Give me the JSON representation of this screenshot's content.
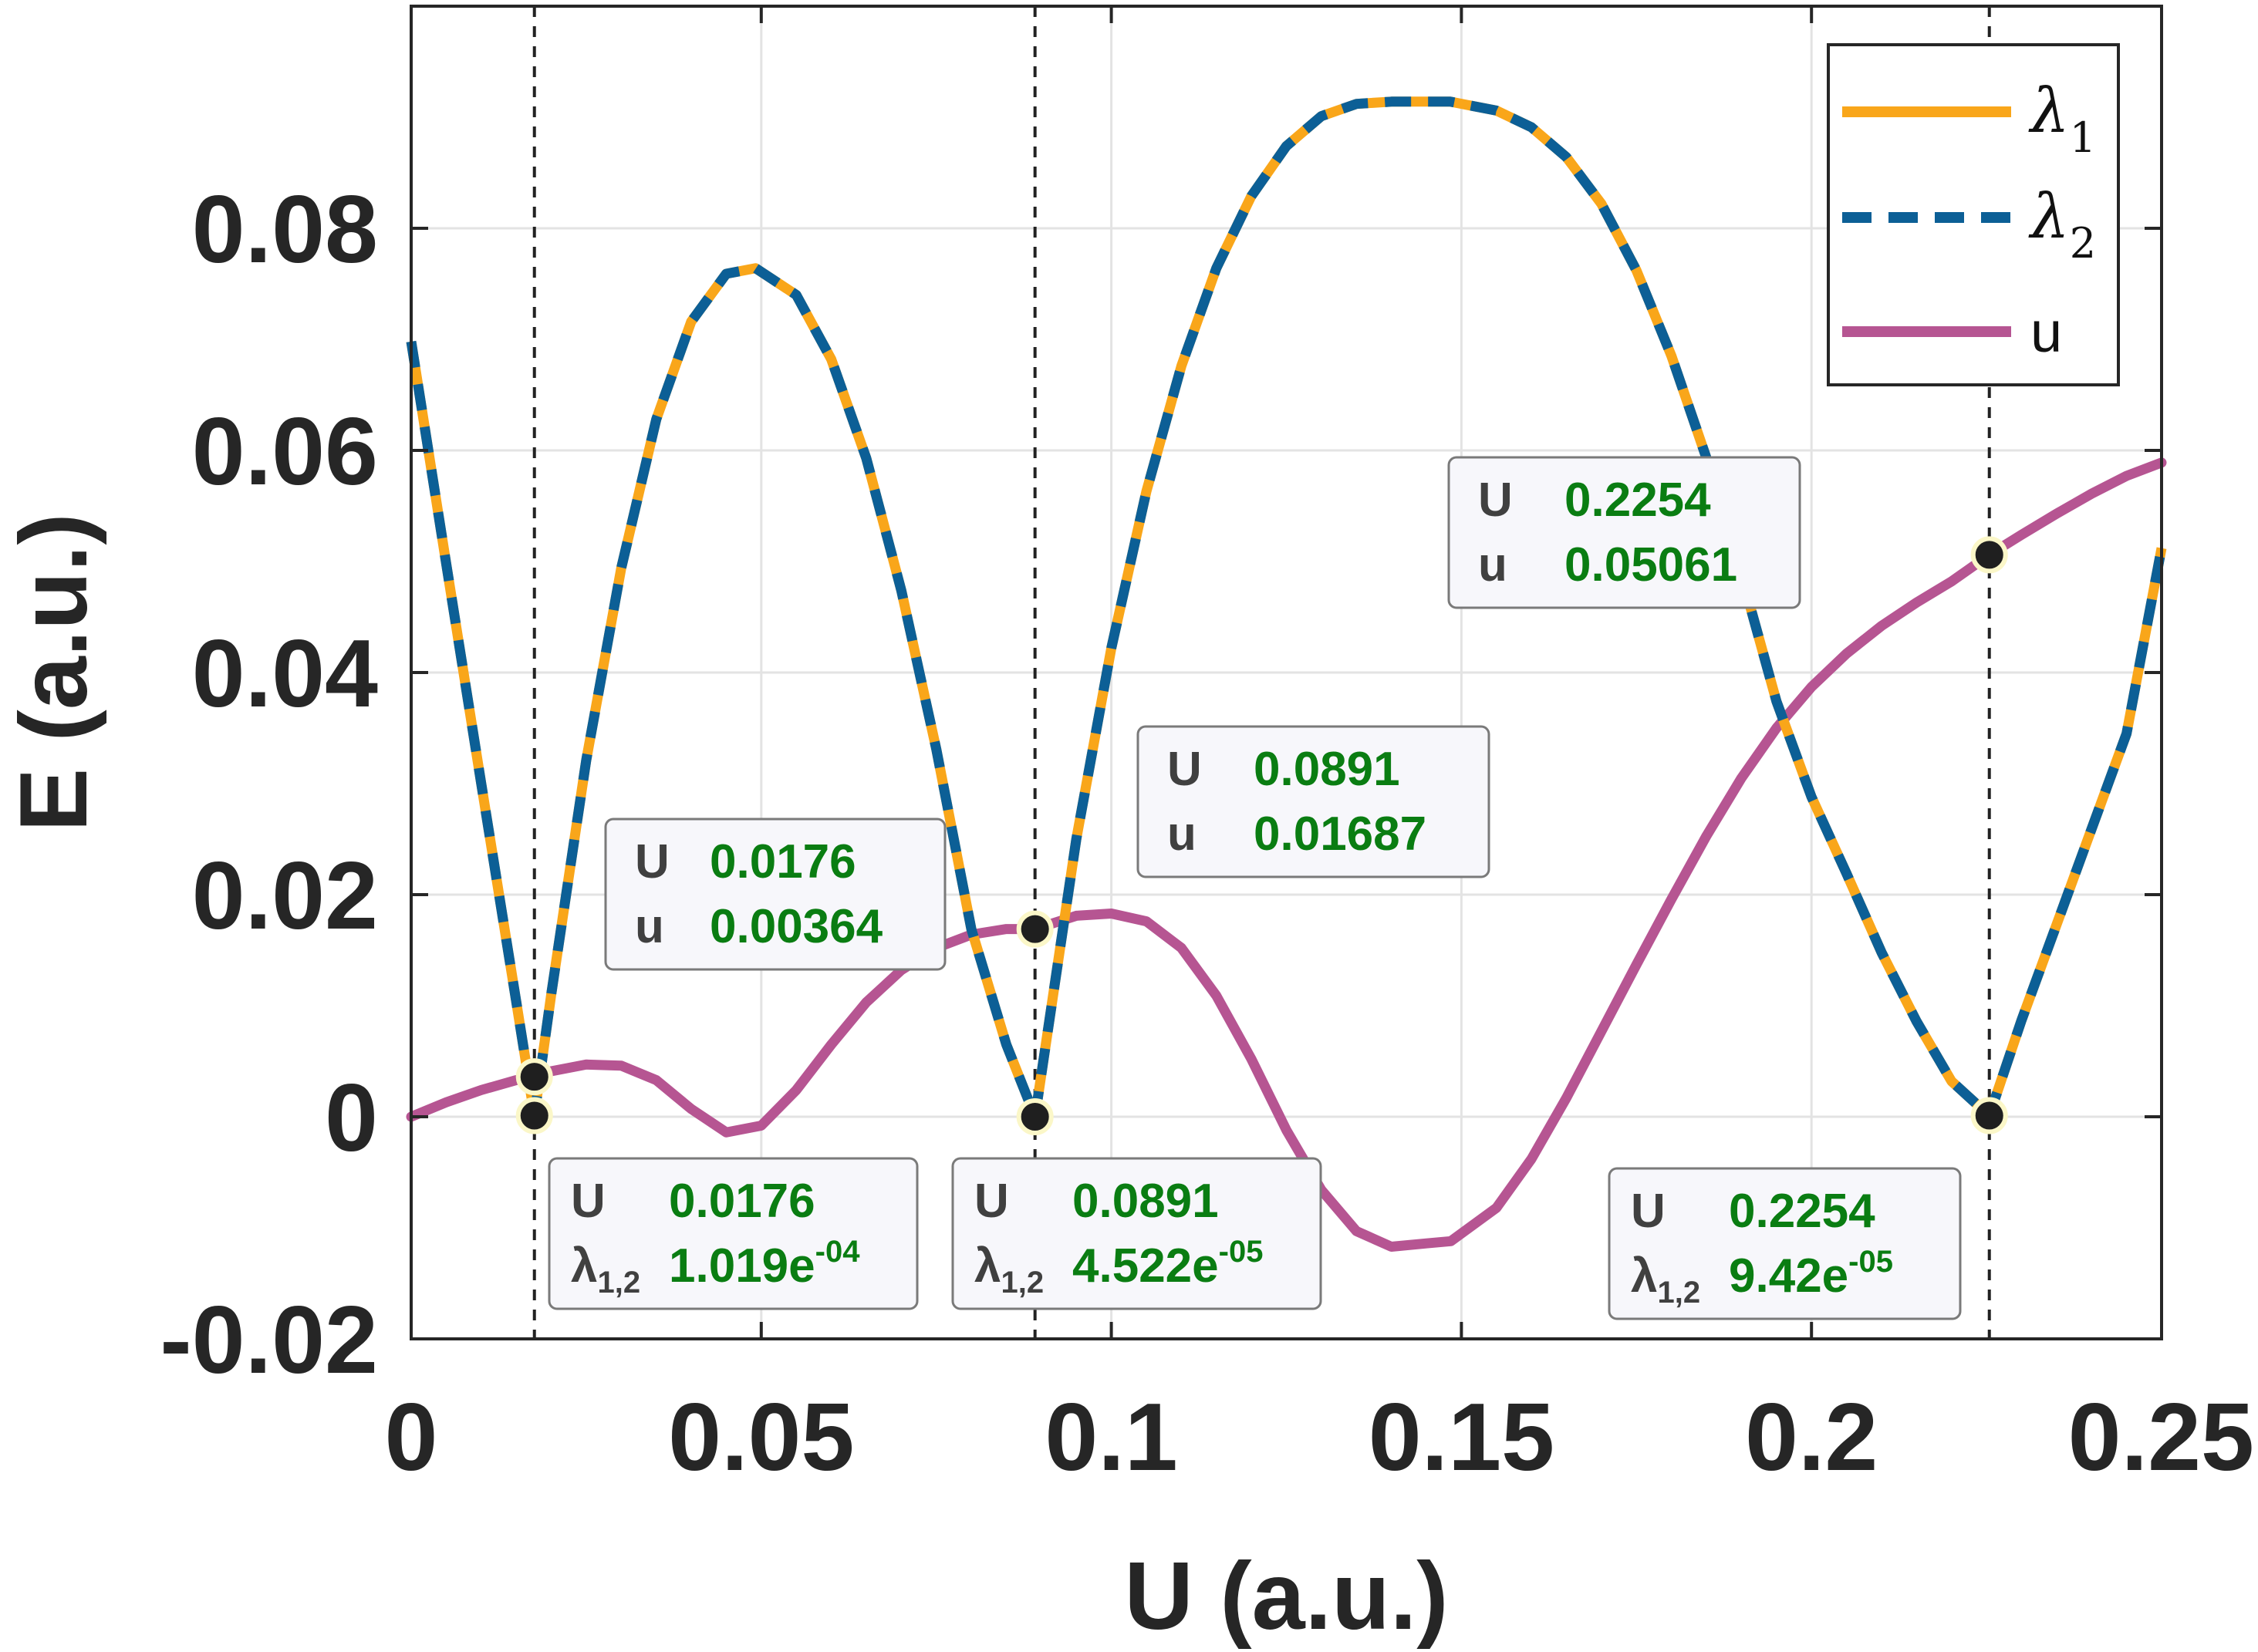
{
  "chart_data": {
    "type": "line",
    "xlabel": "U (a.u.)",
    "ylabel": "E (a.u.)",
    "xlim": [
      0,
      0.25
    ],
    "ylim": [
      -0.02,
      0.1
    ],
    "x_ticks": [
      0,
      0.05,
      0.1,
      0.15,
      0.2,
      0.25
    ],
    "x_tick_labels": [
      "0",
      "0.05",
      "0.1",
      "0.15",
      "0.2",
      "0.25"
    ],
    "y_ticks": [
      -0.02,
      0,
      0.02,
      0.04,
      0.06,
      0.08
    ],
    "y_tick_labels": [
      "-0.02",
      "0",
      "0.02",
      "0.04",
      "0.06",
      "0.08"
    ],
    "grid": true,
    "legend_position": "top-right",
    "colors": {
      "lambda1": "#f9a61a",
      "lambda2": "#0c5f96",
      "u": "#b65592",
      "marker": "#1f1f1f",
      "datatip_value": "#0a7d12"
    },
    "series": [
      {
        "name": "λ1",
        "legend_symbol": "λ",
        "legend_sub": "1",
        "style": "solid",
        "x": [
          0,
          0.005,
          0.01,
          0.015,
          0.0176,
          0.02,
          0.025,
          0.03,
          0.035,
          0.04,
          0.045,
          0.0492,
          0.055,
          0.06,
          0.065,
          0.07,
          0.075,
          0.08,
          0.085,
          0.0891,
          0.095,
          0.1,
          0.105,
          0.11,
          0.115,
          0.12,
          0.125,
          0.13,
          0.135,
          0.14,
          0.145,
          0.1484,
          0.155,
          0.16,
          0.165,
          0.17,
          0.175,
          0.18,
          0.185,
          0.19,
          0.195,
          0.2,
          0.205,
          0.21,
          0.215,
          0.22,
          0.2254,
          0.23,
          0.235,
          0.24,
          0.245,
          0.25
        ],
        "values": [
          0.0698,
          0.0498,
          0.03,
          0.0104,
          0.0001,
          0.011,
          0.0321,
          0.0494,
          0.0628,
          0.0716,
          0.0759,
          0.0764,
          0.074,
          0.0682,
          0.0593,
          0.0474,
          0.0331,
          0.0169,
          0.0065,
          0.0,
          0.025,
          0.0422,
          0.0563,
          0.0676,
          0.0764,
          0.0829,
          0.0874,
          0.0901,
          0.0912,
          0.0914,
          0.0914,
          0.0914,
          0.0906,
          0.0891,
          0.0864,
          0.0822,
          0.0762,
          0.0685,
          0.0593,
          0.0488,
          0.0374,
          0.0288,
          0.0219,
          0.0148,
          0.0086,
          0.0032,
          0.0001,
          0.0087,
          0.0173,
          0.0259,
          0.0345,
          0.0512
        ]
      },
      {
        "name": "λ2",
        "legend_symbol": "λ",
        "legend_sub": "2",
        "style": "dashed",
        "x": [
          0,
          0.005,
          0.01,
          0.015,
          0.0176,
          0.02,
          0.025,
          0.03,
          0.035,
          0.04,
          0.045,
          0.0492,
          0.055,
          0.06,
          0.065,
          0.07,
          0.075,
          0.08,
          0.085,
          0.0891,
          0.095,
          0.1,
          0.105,
          0.11,
          0.115,
          0.12,
          0.125,
          0.13,
          0.135,
          0.14,
          0.145,
          0.1484,
          0.155,
          0.16,
          0.165,
          0.17,
          0.175,
          0.18,
          0.185,
          0.19,
          0.195,
          0.2,
          0.205,
          0.21,
          0.215,
          0.22,
          0.2254,
          0.23,
          0.235,
          0.24,
          0.245,
          0.25
        ],
        "values": [
          0.0698,
          0.0498,
          0.03,
          0.0104,
          0.0001,
          0.011,
          0.0321,
          0.0494,
          0.0628,
          0.0716,
          0.0759,
          0.0764,
          0.074,
          0.0682,
          0.0593,
          0.0474,
          0.0331,
          0.0169,
          0.0065,
          0.0,
          0.025,
          0.0422,
          0.0563,
          0.0676,
          0.0764,
          0.0829,
          0.0874,
          0.0901,
          0.0912,
          0.0914,
          0.0914,
          0.0914,
          0.0906,
          0.0891,
          0.0864,
          0.0822,
          0.0762,
          0.0685,
          0.0593,
          0.0488,
          0.0374,
          0.0288,
          0.0219,
          0.0148,
          0.0086,
          0.0032,
          0.0001,
          0.0087,
          0.0173,
          0.0259,
          0.0345,
          0.0512
        ]
      },
      {
        "name": "u",
        "legend_symbol": "u",
        "legend_sub": "",
        "style": "solid",
        "x": [
          0,
          0.005,
          0.01,
          0.015,
          0.0176,
          0.02,
          0.025,
          0.03,
          0.035,
          0.04,
          0.045,
          0.05,
          0.055,
          0.06,
          0.065,
          0.07,
          0.075,
          0.08,
          0.085,
          0.0891,
          0.095,
          0.1,
          0.105,
          0.11,
          0.115,
          0.12,
          0.125,
          0.13,
          0.135,
          0.14,
          0.145,
          0.1485,
          0.155,
          0.16,
          0.165,
          0.17,
          0.175,
          0.18,
          0.185,
          0.19,
          0.195,
          0.2,
          0.205,
          0.21,
          0.215,
          0.22,
          0.2254,
          0.23,
          0.235,
          0.24,
          0.245,
          0.25
        ],
        "values": [
          0.0,
          0.0013,
          0.0024,
          0.0033,
          0.0036,
          0.0041,
          0.0047,
          0.0046,
          0.0033,
          0.0007,
          -0.0014,
          -0.0008,
          0.0024,
          0.0065,
          0.0103,
          0.0132,
          0.0152,
          0.0164,
          0.0169,
          0.0169,
          0.0181,
          0.0183,
          0.0176,
          0.0152,
          0.0109,
          0.0052,
          -0.0012,
          -0.0066,
          -0.0103,
          -0.0117,
          -0.0114,
          -0.0112,
          -0.0082,
          -0.0038,
          0.0017,
          0.0077,
          0.0137,
          0.0196,
          0.0253,
          0.0305,
          0.035,
          0.0387,
          0.0417,
          0.0442,
          0.0463,
          0.0482,
          0.0506,
          0.0524,
          0.0543,
          0.0561,
          0.0577,
          0.0589
        ]
      }
    ],
    "markers": [
      {
        "x": 0.0176,
        "y": 0.0036
      },
      {
        "x": 0.0891,
        "y": 0.0169
      },
      {
        "x": 0.2254,
        "y": 0.0506
      },
      {
        "x": 0.0176,
        "y": 0.0001
      },
      {
        "x": 0.0891,
        "y": 0.0
      },
      {
        "x": 0.2254,
        "y": 0.0001
      }
    ],
    "vlines": [
      0.0176,
      0.0891,
      0.2254
    ],
    "datatips": [
      {
        "key1": "U",
        "val1": "0.0176",
        "key2": "u",
        "val2": "0.00364"
      },
      {
        "key1": "U",
        "val1": "0.0891",
        "key2": "u",
        "val2": "0.01687"
      },
      {
        "key1": "U",
        "val1": "0.2254",
        "key2": "u",
        "val2": "0.05061"
      },
      {
        "key1": "U",
        "val1": "0.0176",
        "key2": "λ",
        "key2_sub": "1,2",
        "val2": "1.019e",
        "val2_exp": "-04"
      },
      {
        "key1": "U",
        "val1": "0.0891",
        "key2": "λ",
        "key2_sub": "1,2",
        "val2": "4.522e",
        "val2_exp": "-05"
      },
      {
        "key1": "U",
        "val1": "0.2254",
        "key2": "λ",
        "key2_sub": "1,2",
        "val2": "9.42e",
        "val2_exp": "-05"
      }
    ]
  }
}
